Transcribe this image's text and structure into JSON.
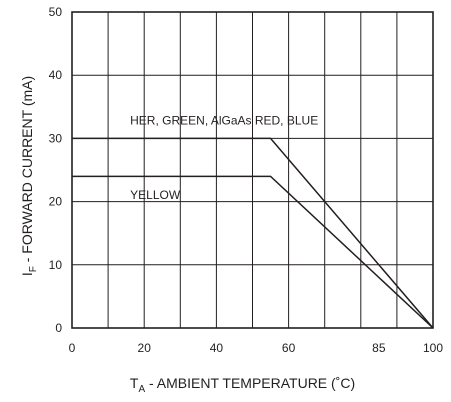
{
  "chart_data": {
    "type": "line",
    "xlabel": {
      "main": "T",
      "sub": "A",
      "rest": " - AMBIENT TEMPERATURE (˚C)"
    },
    "ylabel": {
      "main": "I",
      "sub": "F",
      "rest": " - FORWARD CURRENT (mA)"
    },
    "xlim": [
      0,
      100
    ],
    "ylim": [
      0,
      50
    ],
    "x_tick_labels": [
      {
        "value": 0,
        "label": "0"
      },
      {
        "value": 20,
        "label": "20"
      },
      {
        "value": 40,
        "label": "40"
      },
      {
        "value": 60,
        "label": "60"
      },
      {
        "value": 85,
        "label": "85"
      },
      {
        "value": 100,
        "label": "100"
      }
    ],
    "y_tick_labels": [
      {
        "value": 0,
        "label": "0"
      },
      {
        "value": 10,
        "label": "10"
      },
      {
        "value": 20,
        "label": "20"
      },
      {
        "value": 30,
        "label": "30"
      },
      {
        "value": 40,
        "label": "40"
      },
      {
        "value": 50,
        "label": "50"
      }
    ],
    "grid": true,
    "grid_x": [
      10,
      20,
      30,
      40,
      50,
      60,
      70,
      80,
      90
    ],
    "grid_y": [
      10,
      20,
      30,
      40
    ],
    "series": [
      {
        "name": "HER, GREEN, AlGaAs RED, BLUE",
        "points": [
          [
            0,
            30
          ],
          [
            55,
            30
          ],
          [
            100,
            0
          ]
        ],
        "label_at": [
          15,
          32.2
        ]
      },
      {
        "name": "YELLOW",
        "points": [
          [
            0,
            24
          ],
          [
            55,
            24
          ],
          [
            100,
            0
          ]
        ],
        "label_at": [
          15,
          20.4
        ]
      }
    ]
  }
}
